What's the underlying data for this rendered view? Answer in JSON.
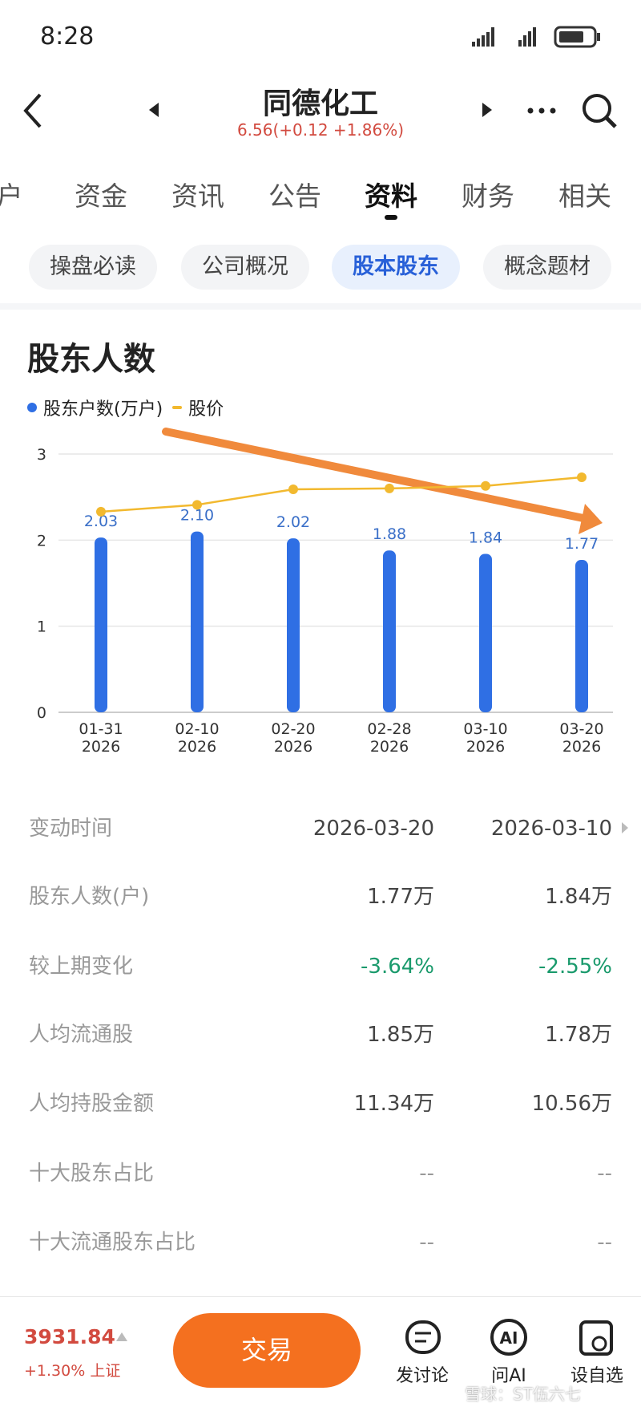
{
  "status_bar": {
    "time": "8:28"
  },
  "header": {
    "title": "同德化工",
    "quote": "6.56(+0.12 +1.86%)"
  },
  "tabs": [
    "户",
    "资金",
    "资讯",
    "公告",
    "资料",
    "财务",
    "相关"
  ],
  "sub_tabs": [
    "操盘必读",
    "公司概况",
    "股本股东",
    "概念题材"
  ],
  "chart_data": {
    "type": "bar",
    "title": "股东人数",
    "categories": [
      "01-31\n2026",
      "02-10\n2026",
      "02-20\n2026",
      "02-28\n2026",
      "03-10\n2026",
      "03-20\n2026"
    ],
    "series": [
      {
        "name": "股东户数(万户)",
        "type": "bar",
        "color": "#2f6fe4",
        "values": [
          2.03,
          2.1,
          2.02,
          1.88,
          1.84,
          1.77
        ],
        "value_labels": [
          "2.03",
          "2.10",
          "2.02",
          "1.88",
          "1.84",
          "1.77"
        ]
      },
      {
        "name": "股价",
        "type": "line",
        "color": "#f2b92f",
        "values": [
          2.33,
          2.41,
          2.59,
          2.6,
          2.63,
          2.73
        ]
      }
    ],
    "ylim": [
      0,
      3
    ],
    "yticks": [
      0,
      1,
      2,
      3
    ],
    "grid": true,
    "legend": "top-left"
  },
  "table": {
    "header": [
      "变动时间",
      "2026-03-20",
      "2026-03-10"
    ],
    "rows": [
      [
        "股东人数(户)",
        "1.77万",
        "1.84万"
      ],
      [
        "较上期变化",
        "-3.64%",
        "-2.55%"
      ],
      [
        "人均流通股",
        "1.85万",
        "1.78万"
      ],
      [
        "人均持股金额",
        "11.34万",
        "10.56万"
      ],
      [
        "十大股东占比",
        "--",
        "--"
      ],
      [
        "十大流通股东占比",
        "--",
        "--"
      ]
    ]
  },
  "bottom_bar": {
    "index_value": "3931.84",
    "index_change": "+1.30% 上证",
    "trade": "交易",
    "actions": [
      "发讨论",
      "问AI",
      "设自选"
    ],
    "watermark": "雪球：ST伍六七"
  }
}
